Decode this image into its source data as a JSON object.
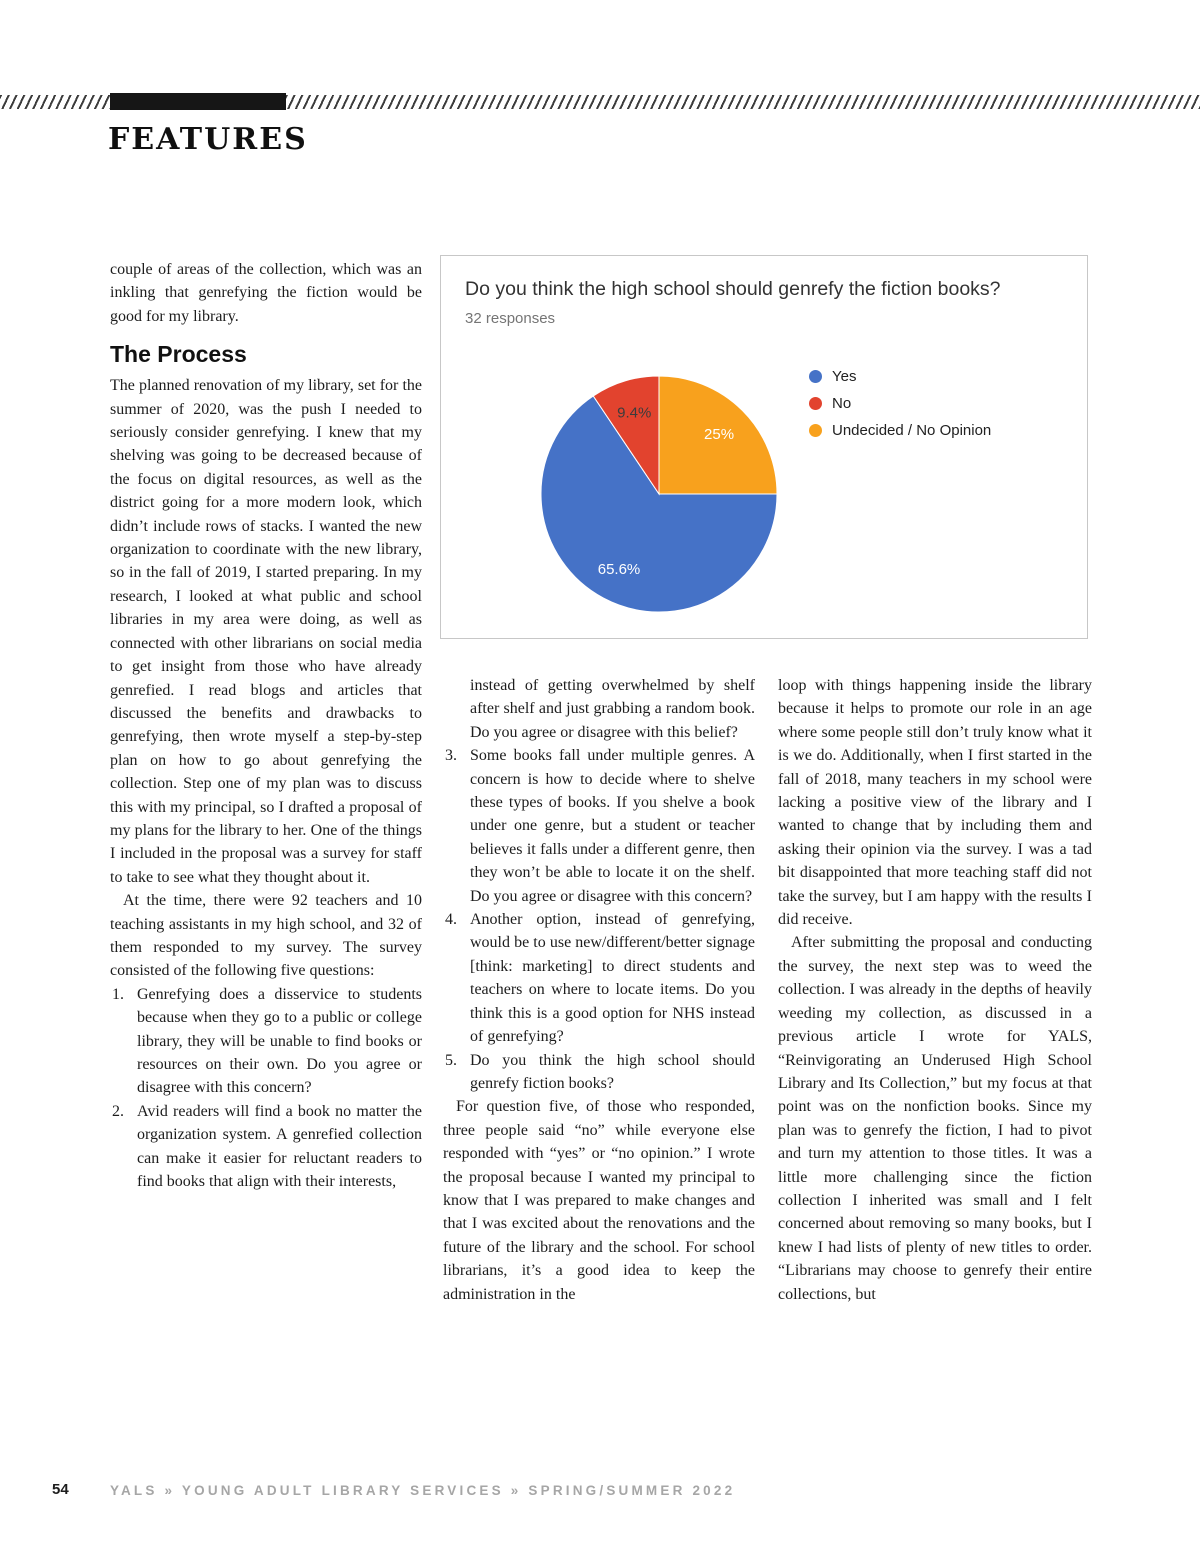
{
  "header": {
    "section_label": "FEATURES"
  },
  "article": {
    "left": {
      "intro": "couple of areas of the collection, which was an inkling that genrefying the fiction would be good for my library.",
      "heading": "The Process",
      "para1": "The planned renovation of my library, set for the summer of 2020, was the push I needed to seriously consider genrefying. I knew that my shelving was going to be decreased because of the focus on digital resources, as well as the district going for a more modern look, which didn’t include rows of stacks. I wanted the new organization to coordinate with the new library, so in the fall of 2019, I started preparing. In my research, I looked at what public and school libraries in my area were doing, as well as connected with other librarians on social media to get insight from those who have already genrefied. I read blogs and articles that discussed the benefits and drawbacks to genrefying, then wrote myself a step-by-step plan on how to go about genrefying the collection. Step one of my plan was to discuss this with my principal, so I drafted a proposal of my plans for the library to her. One of the things I included in the proposal was a survey for staff to take to see what they thought about it.",
      "para2": "At the time, there were 92 teachers and 10 teaching assistants in my high school, and 32 of them responded to my survey. The survey consisted of the following five questions:",
      "list": [
        {
          "num": "1.",
          "text": "Genrefying does a disservice to students because when they go to a public or college library, they will be unable to find books or resources on their own. Do you agree or disagree with this concern?"
        },
        {
          "num": "2.",
          "text": "Avid readers will find a book no matter the organization system. A genrefied collection can make it easier for reluctant readers to find books that align with their interests,"
        }
      ]
    },
    "middle": {
      "continuation": "instead of getting overwhelmed by shelf after shelf and just grabbing a random book. Do you agree or disagree with this belief?",
      "list": [
        {
          "num": "3.",
          "text": "Some books fall under multiple genres. A concern is how to decide where to shelve these types of books. If you shelve a book under one genre, but a student or teacher believes it falls under a different genre, then they won’t be able to locate it on the shelf. Do you agree or disagree with this concern?"
        },
        {
          "num": "4.",
          "text": "Another option, instead of genrefying, would be to use new/different/better signage [think: marketing] to direct students and teachers on where to locate items. Do you think this is a good option for NHS instead of genrefying?"
        },
        {
          "num": "5.",
          "text": "Do you think the high school should genrefy fiction books?"
        }
      ],
      "para": "For question five, of those who responded, three people said “no” while everyone else responded with “yes” or “no opinion.” I wrote the proposal because I wanted my principal to know that I was prepared to make changes and that I was excited about the renovations and the future of the library and the school. For school librarians, it’s a good idea to keep the administration in the"
    },
    "right": {
      "para1": "loop with things happening inside the library because it helps to promote our role in an age where some people still don’t truly know what it is we do. Additionally, when I first started in the fall of 2018, many teachers in my school were lacking a positive view of the library and I wanted to change that by including them and asking their opinion via the survey. I was a tad bit disappointed that more teaching staff did not take the survey, but I am happy with the results I did receive.",
      "para2": "After submitting the proposal and conducting the survey, the next step was to weed the collection. I was already in the depths of heavily weeding my collection, as discussed in a previous article I wrote for YALS, “Reinvigorating an Underused High School Library and Its Collection,” but my focus at that point was on the nonfiction books. Since my plan was to genrefy the fiction, I had to pivot and turn my attention to those titles. It was a little more challenging since the fiction collection I inherited was small and I felt concerned about removing so many books, but I knew I had lists of plenty of new titles to order. “Librarians may choose to genrefy their entire collections, but"
    }
  },
  "chart_data": {
    "type": "pie",
    "title": "Do you think the high school should genrefy the fiction books?",
    "subtitle": "32 responses",
    "legend_position": "right",
    "rotation_deg": 90,
    "slices": [
      {
        "label": "Yes",
        "pct": 65.6,
        "display": "65.6%",
        "color": "#4572c7"
      },
      {
        "label": "No",
        "pct": 9.4,
        "display": "9.4%",
        "color": "#e2432e"
      },
      {
        "label": "Undecided / No Opinion",
        "pct": 25,
        "display": "25%",
        "color": "#f8a11d"
      }
    ]
  },
  "footer": {
    "page_number": "54",
    "text": "YALS  »  YOUNG ADULT LIBRARY SERVICES  »  SPRING/SUMMER 2022"
  }
}
